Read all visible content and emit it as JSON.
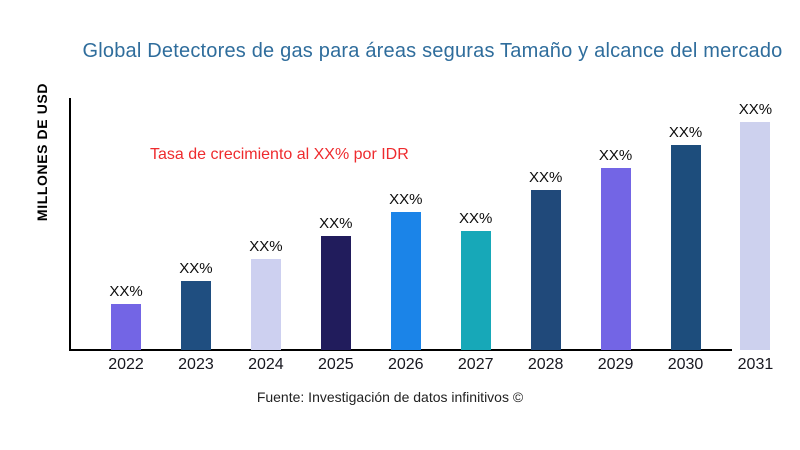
{
  "page": {
    "background": "#ffffff"
  },
  "colors": {
    "title": "#2f6d9c",
    "annotation_red": "#ee2b2e",
    "axis": "#000000",
    "tick_text": "#17171f",
    "value_label_text": "#0c0c0c"
  },
  "source": {
    "caption": "Fuente: Investigación de datos infinitivos ©"
  },
  "chart_data": {
    "type": "bar",
    "title": "Global Detectores de gas para áreas seguras Tamaño y alcance del mercado",
    "ylabel": "MILLONES DE USD",
    "xlabel": "",
    "annotation": "Tasa de crecimiento al XX% por IDR",
    "categories": [
      "2022",
      "2023",
      "2024",
      "2025",
      "2026",
      "2027",
      "2028",
      "2029",
      "2030",
      "2031"
    ],
    "values": [
      20.2,
      30.3,
      39.9,
      50.0,
      60.5,
      52.2,
      70.2,
      79.8,
      89.9,
      100.0
    ],
    "value_labels": [
      "XX%",
      "XX%",
      "XX%",
      "XX%",
      "XX%",
      "XX%",
      "XX%",
      "XX%",
      "XX%",
      "XX%"
    ],
    "bar_colors": [
      "#7365e5",
      "#1f4e80",
      "#cdd0f0",
      "#211c5c",
      "#1b84e8",
      "#17a8b8",
      "#20497a",
      "#7365e5",
      "#1d4d7c",
      "#cdd1ee"
    ],
    "grid": false,
    "legend": false,
    "note_axis": "values shown only as XX% placeholders; heights are relative index estimated from pixels (2031 = 100)"
  }
}
